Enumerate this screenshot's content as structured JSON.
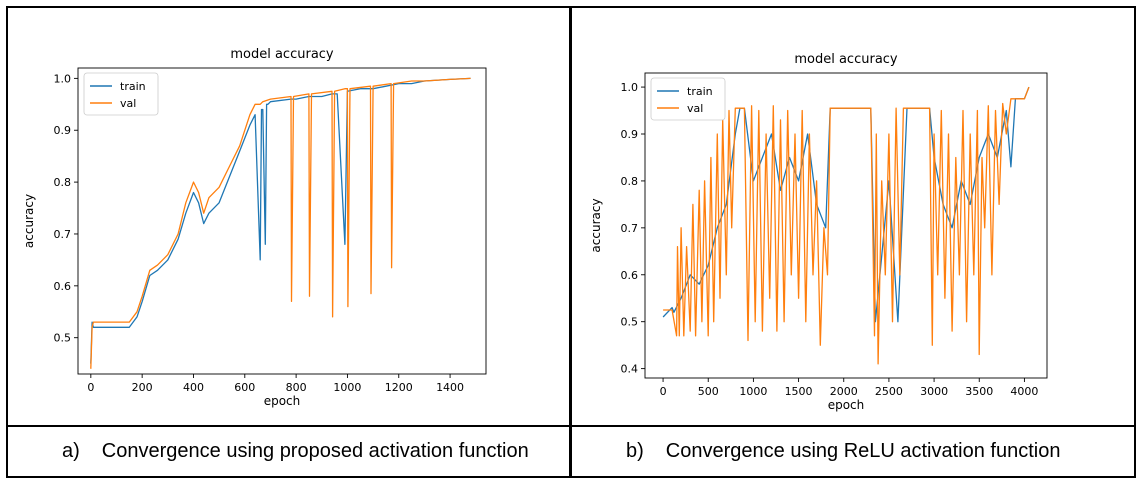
{
  "captions": [
    {
      "letter": "a)",
      "text": "Convergence using proposed activation function"
    },
    {
      "letter": "b)",
      "text": "Convergence using ReLU activation function"
    }
  ],
  "colors": {
    "train": "#1f77b4",
    "val": "#ff7f0e"
  },
  "chart_data": [
    {
      "type": "line",
      "title": "model accuracy",
      "xlabel": "epoch",
      "ylabel": "accuracy",
      "xlim": [
        -50,
        1540
      ],
      "ylim": [
        0.43,
        1.02
      ],
      "xticks": [
        0,
        200,
        400,
        600,
        800,
        1000,
        1200,
        1400
      ],
      "yticks": [
        0.5,
        0.6,
        0.7,
        0.8,
        0.9,
        1.0
      ],
      "legend": "top-left",
      "grid": false,
      "series": [
        {
          "name": "train",
          "x": [
            0,
            5,
            10,
            50,
            100,
            150,
            180,
            200,
            230,
            260,
            300,
            340,
            370,
            400,
            420,
            440,
            460,
            500,
            540,
            580,
            620,
            640,
            660,
            665,
            670,
            680,
            685,
            690,
            700,
            780,
            800,
            850,
            900,
            940,
            960,
            990,
            1000,
            1050,
            1100,
            1150,
            1200,
            1250,
            1300,
            1400,
            1480
          ],
          "y": [
            0.45,
            0.53,
            0.52,
            0.52,
            0.52,
            0.52,
            0.54,
            0.57,
            0.62,
            0.63,
            0.65,
            0.69,
            0.74,
            0.78,
            0.76,
            0.72,
            0.74,
            0.76,
            0.81,
            0.86,
            0.91,
            0.93,
            0.65,
            0.94,
            0.94,
            0.68,
            0.95,
            0.95,
            0.955,
            0.96,
            0.96,
            0.965,
            0.965,
            0.97,
            0.97,
            0.68,
            0.975,
            0.98,
            0.98,
            0.985,
            0.99,
            0.99,
            0.995,
            0.998,
            1.0
          ]
        },
        {
          "name": "val",
          "x": [
            0,
            5,
            10,
            50,
            100,
            150,
            180,
            200,
            230,
            260,
            300,
            340,
            370,
            400,
            420,
            440,
            460,
            500,
            540,
            580,
            620,
            640,
            660,
            670,
            700,
            780,
            782,
            790,
            850,
            852,
            860,
            940,
            942,
            950,
            990,
            1000,
            1002,
            1010,
            1090,
            1092,
            1100,
            1170,
            1172,
            1180,
            1250,
            1300,
            1400,
            1480
          ],
          "y": [
            0.44,
            0.52,
            0.53,
            0.53,
            0.53,
            0.53,
            0.55,
            0.58,
            0.63,
            0.64,
            0.66,
            0.7,
            0.76,
            0.8,
            0.78,
            0.74,
            0.77,
            0.79,
            0.83,
            0.87,
            0.93,
            0.95,
            0.95,
            0.955,
            0.96,
            0.965,
            0.57,
            0.965,
            0.97,
            0.58,
            0.97,
            0.975,
            0.54,
            0.975,
            0.98,
            0.98,
            0.56,
            0.98,
            0.985,
            0.585,
            0.985,
            0.99,
            0.635,
            0.99,
            0.995,
            0.995,
            0.998,
            1.0
          ]
        }
      ]
    },
    {
      "type": "line",
      "title": "model accuracy",
      "xlabel": "epoch",
      "ylabel": "accuracy",
      "xlim": [
        -200,
        4250
      ],
      "ylim": [
        0.38,
        1.03
      ],
      "xticks": [
        0,
        500,
        1000,
        1500,
        2000,
        2500,
        3000,
        3500,
        4000
      ],
      "yticks": [
        0.4,
        0.5,
        0.6,
        0.7,
        0.8,
        0.9,
        1.0
      ],
      "legend": "top-left",
      "grid": false,
      "series": [
        {
          "name": "train",
          "x": [
            0,
            100,
            120,
            200,
            300,
            400,
            500,
            600,
            700,
            800,
            850,
            900,
            1000,
            1100,
            1200,
            1300,
            1400,
            1500,
            1600,
            1700,
            1800,
            1850,
            1900,
            2000,
            2100,
            2200,
            2300,
            2350,
            2400,
            2500,
            2600,
            2700,
            2800,
            2900,
            2950,
            3000,
            3100,
            3200,
            3300,
            3400,
            3500,
            3600,
            3700,
            3800,
            3850,
            3900,
            4000,
            4050
          ],
          "y": [
            0.51,
            0.53,
            0.52,
            0.55,
            0.6,
            0.58,
            0.62,
            0.7,
            0.75,
            0.9,
            0.955,
            0.955,
            0.8,
            0.85,
            0.9,
            0.78,
            0.85,
            0.8,
            0.9,
            0.75,
            0.7,
            0.955,
            0.955,
            0.955,
            0.955,
            0.955,
            0.955,
            0.5,
            0.6,
            0.8,
            0.5,
            0.955,
            0.955,
            0.955,
            0.955,
            0.85,
            0.75,
            0.7,
            0.8,
            0.75,
            0.85,
            0.9,
            0.85,
            0.95,
            0.83,
            0.975,
            0.975,
            1.0
          ]
        },
        {
          "name": "val",
          "x": [
            0,
            100,
            150,
            160,
            180,
            200,
            230,
            260,
            300,
            330,
            360,
            400,
            430,
            460,
            500,
            530,
            560,
            600,
            630,
            660,
            700,
            730,
            760,
            800,
            830,
            860,
            900,
            940,
            980,
            1020,
            1060,
            1100,
            1140,
            1180,
            1220,
            1260,
            1300,
            1340,
            1380,
            1420,
            1460,
            1500,
            1540,
            1580,
            1620,
            1660,
            1700,
            1740,
            1780,
            1820,
            1850,
            1900,
            2000,
            2100,
            2200,
            2300,
            2340,
            2360,
            2380,
            2420,
            2460,
            2500,
            2540,
            2580,
            2620,
            2660,
            2700,
            2800,
            2900,
            2950,
            2980,
            3000,
            3040,
            3080,
            3120,
            3160,
            3200,
            3240,
            3280,
            3320,
            3360,
            3400,
            3440,
            3480,
            3500,
            3530,
            3560,
            3600,
            3640,
            3680,
            3720,
            3760,
            3800,
            3850,
            3900,
            4000,
            4050
          ],
          "y": [
            0.525,
            0.525,
            0.47,
            0.66,
            0.47,
            0.7,
            0.47,
            0.66,
            0.48,
            0.75,
            0.47,
            0.78,
            0.5,
            0.8,
            0.47,
            0.85,
            0.5,
            0.9,
            0.55,
            0.93,
            0.6,
            0.95,
            0.7,
            0.955,
            0.955,
            0.955,
            0.955,
            0.46,
            0.96,
            0.5,
            0.95,
            0.48,
            0.9,
            0.55,
            0.96,
            0.48,
            0.93,
            0.5,
            0.95,
            0.6,
            0.9,
            0.55,
            0.95,
            0.5,
            0.9,
            0.6,
            0.8,
            0.45,
            0.7,
            0.6,
            0.955,
            0.955,
            0.955,
            0.955,
            0.955,
            0.955,
            0.47,
            0.9,
            0.41,
            0.8,
            0.6,
            0.9,
            0.5,
            0.955,
            0.6,
            0.955,
            0.955,
            0.955,
            0.955,
            0.955,
            0.45,
            0.9,
            0.6,
            0.95,
            0.55,
            0.9,
            0.48,
            0.85,
            0.6,
            0.95,
            0.5,
            0.9,
            0.6,
            0.95,
            0.43,
            0.85,
            0.7,
            0.96,
            0.6,
            0.95,
            0.75,
            0.965,
            0.9,
            0.975,
            0.975,
            0.975,
            1.0
          ]
        }
      ]
    }
  ]
}
